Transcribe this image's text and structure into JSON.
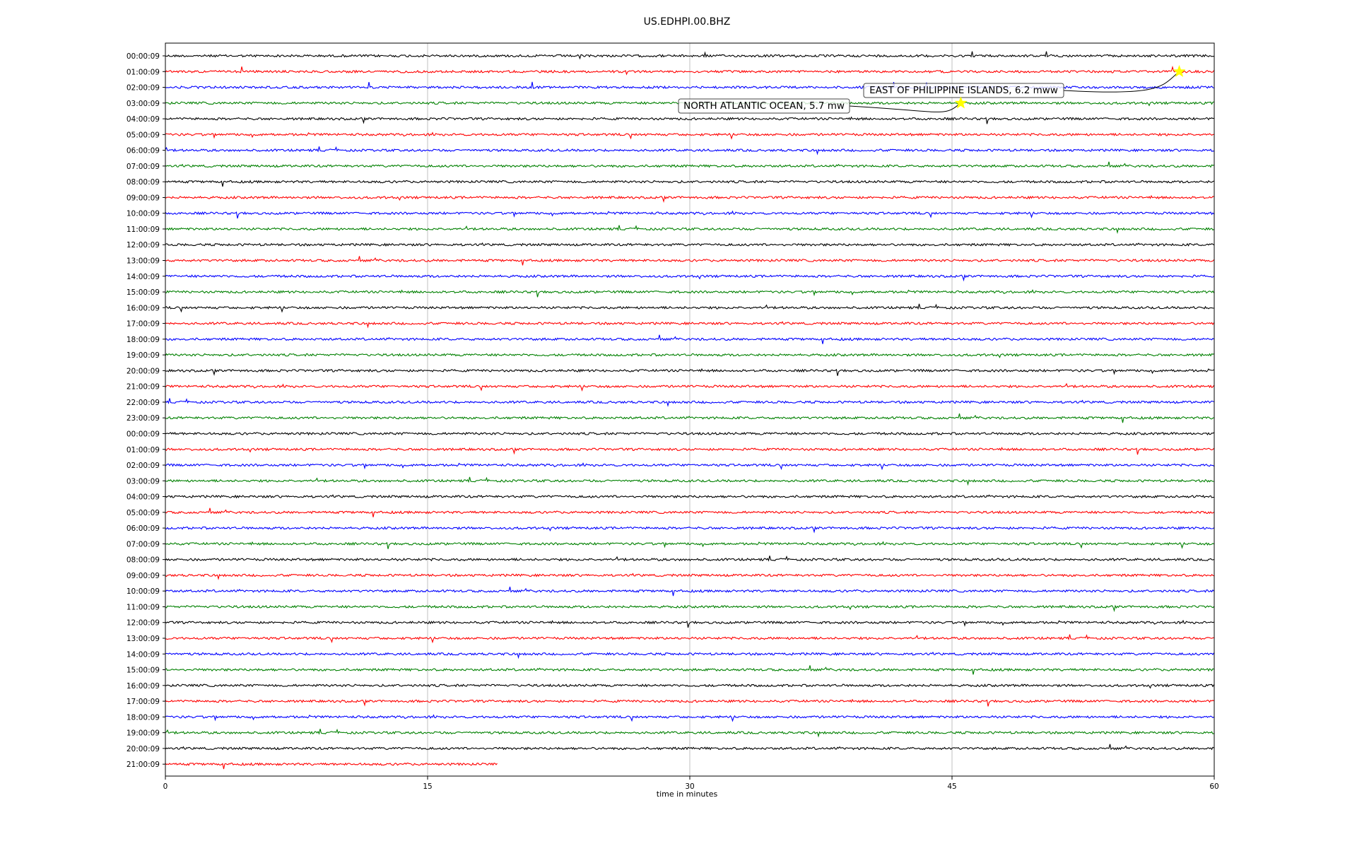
{
  "chart_data": {
    "type": "line",
    "title": "US.EDHPI.00.BHZ",
    "xlabel": "time in minutes",
    "ylabel": "",
    "xlim": [
      0,
      60
    ],
    "xticks": [
      0,
      15,
      30,
      45,
      60
    ],
    "grid": "vertical",
    "colors": [
      "#000000",
      "#ff0000",
      "#0000ff",
      "#008000"
    ],
    "row_labels": [
      "00:00:09",
      "01:00:09",
      "02:00:09",
      "03:00:09",
      "04:00:09",
      "05:00:09",
      "06:00:09",
      "07:00:09",
      "08:00:09",
      "09:00:09",
      "10:00:09",
      "11:00:09",
      "12:00:09",
      "13:00:09",
      "14:00:09",
      "15:00:09",
      "16:00:09",
      "17:00:09",
      "18:00:09",
      "19:00:09",
      "20:00:09",
      "21:00:09",
      "22:00:09",
      "23:00:09",
      "00:00:09",
      "01:00:09",
      "02:00:09",
      "03:00:09",
      "04:00:09",
      "05:00:09",
      "06:00:09",
      "07:00:09",
      "08:00:09",
      "09:00:09",
      "10:00:09",
      "11:00:09",
      "12:00:09",
      "13:00:09",
      "14:00:09",
      "15:00:09",
      "16:00:09",
      "17:00:09",
      "18:00:09",
      "19:00:09",
      "20:00:09",
      "21:00:09"
    ],
    "last_row_end_minute": 19,
    "events": [
      {
        "label": "EAST OF PHILIPPINE ISLANDS, 6.2 mww",
        "row": 1,
        "minute": 58,
        "marker": "star"
      },
      {
        "label": "NORTH ATLANTIC OCEAN, 5.7 mw",
        "row": 3,
        "minute": 45.5,
        "marker": "star"
      }
    ]
  }
}
